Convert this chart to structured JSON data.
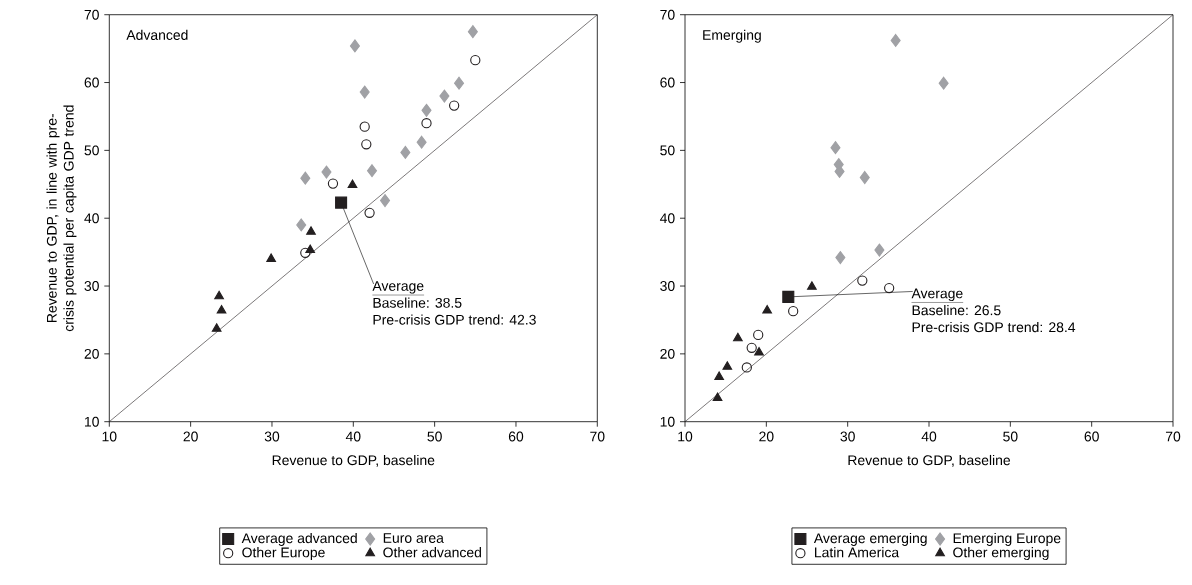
{
  "chart_data": [
    {
      "type": "scatter",
      "title": "Advanced",
      "xlabel": "Revenue to GDP, baseline",
      "ylabel": "Revenue to GDP, in line with pre-crisis potential per capita GDP trend",
      "xlim": [
        10,
        70
      ],
      "ylim": [
        10,
        70
      ],
      "xticks": [
        10,
        20,
        30,
        40,
        50,
        60,
        70
      ],
      "yticks": [
        10,
        20,
        30,
        40,
        50,
        60,
        70
      ],
      "legend": "bottom",
      "annotations": [
        {
          "text": "Average",
          "x": 38.5,
          "y": 42.3
        },
        "Baseline: 38.5",
        "Pre-crisis GDP trend: 42.3"
      ],
      "series": [
        {
          "name": "Average advanced",
          "color": "#231f20",
          "marker": "square",
          "x": [
            38.5
          ],
          "values": [
            42.3
          ]
        },
        {
          "name": "Euro area",
          "color": "#a0a1a5",
          "marker": "diamond",
          "x": [
            54.7,
            40.2,
            41.4,
            53.0,
            51.2,
            49.0,
            48.4,
            46.4,
            42.3,
            36.7,
            34.1,
            43.9,
            33.6
          ],
          "values": [
            67.5,
            65.4,
            58.6,
            59.9,
            58.0,
            55.9,
            51.2,
            49.7,
            47.0,
            46.8,
            45.9,
            42.6,
            39.0
          ]
        },
        {
          "name": "Other Europe",
          "color": "#231f20",
          "marker": "circle",
          "x": [
            55.0,
            52.4,
            49.0,
            41.4,
            41.6,
            37.5,
            42.0,
            34.1
          ],
          "values": [
            63.3,
            56.6,
            54.0,
            53.5,
            50.9,
            45.1,
            40.8,
            34.9
          ]
        },
        {
          "name": "Other advanced",
          "color": "#231f20",
          "marker": "triangle",
          "x": [
            39.9,
            34.8,
            34.7,
            29.9,
            23.5,
            23.8,
            23.2
          ],
          "values": [
            44.9,
            38.0,
            35.3,
            34.0,
            28.5,
            26.4,
            23.7
          ]
        },
        {
          "type": "line",
          "color": "#231f20",
          "marker": "none",
          "x": [
            10,
            70
          ],
          "values": [
            10,
            70
          ]
        }
      ]
    },
    {
      "type": "scatter",
      "title": "Emerging",
      "xlabel": "Revenue to GDP, baseline",
      "xlim": [
        10,
        70
      ],
      "ylim": [
        10,
        70
      ],
      "xticks": [
        10,
        20,
        30,
        40,
        50,
        60,
        70
      ],
      "yticks": [
        10,
        20,
        30,
        40,
        50,
        60,
        70
      ],
      "legend": "bottom",
      "annotations": [
        {
          "text": "Average",
          "x": 22.7,
          "y": 28.4
        },
        "Baseline: 26.5",
        "Pre-crisis GDP trend: 28.4"
      ],
      "series": [
        {
          "name": "Average emerging",
          "color": "#231f20",
          "marker": "square",
          "x": [
            22.7
          ],
          "values": [
            28.4
          ]
        },
        {
          "name": "Emerging Europe",
          "color": "#a0a1a5",
          "marker": "diamond",
          "x": [
            35.9,
            41.8,
            28.5,
            28.9,
            29.0,
            32.1,
            29.1,
            33.9
          ],
          "values": [
            66.2,
            59.9,
            50.4,
            47.9,
            46.9,
            46.0,
            34.2,
            35.3
          ]
        },
        {
          "name": "Latin America",
          "color": "#231f20",
          "marker": "circle",
          "x": [
            31.8,
            35.1,
            23.3,
            19.0,
            18.2,
            17.6
          ],
          "values": [
            30.8,
            29.7,
            26.3,
            22.8,
            20.9,
            18.0
          ]
        },
        {
          "name": "Other emerging",
          "color": "#231f20",
          "marker": "triangle",
          "x": [
            25.6,
            20.1,
            16.5,
            19.1,
            15.2,
            14.2,
            14.0
          ],
          "values": [
            29.9,
            26.4,
            22.3,
            20.2,
            18.1,
            16.6,
            13.5
          ]
        },
        {
          "type": "line",
          "color": "#231f20",
          "marker": "none",
          "x": [
            10,
            70
          ],
          "values": [
            10,
            70
          ]
        }
      ]
    }
  ]
}
